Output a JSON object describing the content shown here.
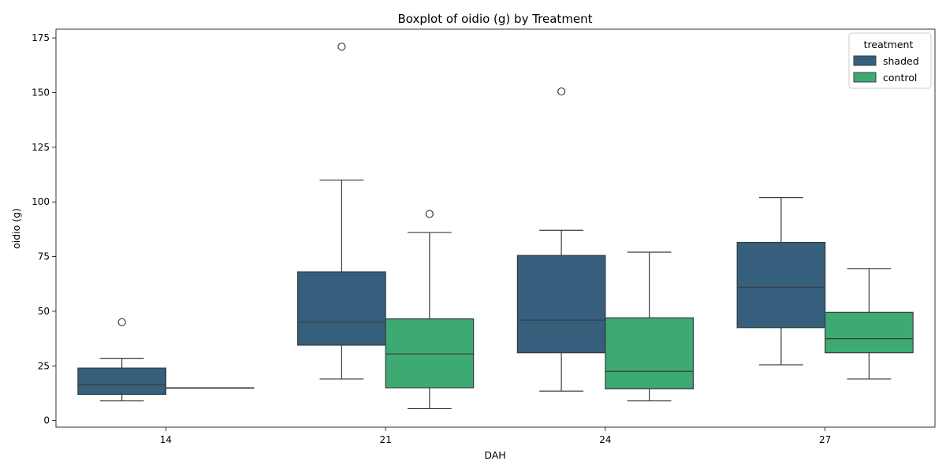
{
  "chart_data": {
    "type": "boxplot",
    "title": "Boxplot of oidio (g) by Treatment",
    "xlabel": "DAH",
    "ylabel": "oidio (g)",
    "categories": [
      "14",
      "21",
      "24",
      "27"
    ],
    "ylim": [
      -3,
      179
    ],
    "yticks": [
      0,
      25,
      50,
      75,
      100,
      125,
      150,
      175
    ],
    "grid": false,
    "legend": {
      "title": "treatment",
      "placement": "top-right"
    },
    "series": [
      {
        "name": "shaded",
        "color": "#355f7d",
        "boxes": [
          {
            "category": "14",
            "whisker_low": 9,
            "q1": 12,
            "median": 16.5,
            "q3": 24,
            "whisker_high": 28.5,
            "outliers": [
              45
            ]
          },
          {
            "category": "21",
            "whisker_low": 19,
            "q1": 34.5,
            "median": 45,
            "q3": 68,
            "whisker_high": 110,
            "outliers": [
              171
            ]
          },
          {
            "category": "24",
            "whisker_low": 13.5,
            "q1": 31,
            "median": 46,
            "q3": 75.5,
            "whisker_high": 87,
            "outliers": [
              150.5
            ]
          },
          {
            "category": "27",
            "whisker_low": 25.5,
            "q1": 42.5,
            "median": 61,
            "q3": 81.5,
            "whisker_high": 102,
            "outliers": []
          }
        ]
      },
      {
        "name": "control",
        "color": "#3daa73",
        "boxes": [
          {
            "category": "14",
            "whisker_low": 15,
            "q1": 15,
            "median": 15,
            "q3": 15,
            "whisker_high": 15,
            "outliers": []
          },
          {
            "category": "21",
            "whisker_low": 5.5,
            "q1": 15,
            "median": 30.5,
            "q3": 46.5,
            "whisker_high": 86,
            "outliers": [
              94.5
            ]
          },
          {
            "category": "24",
            "whisker_low": 9,
            "q1": 14.5,
            "median": 22.5,
            "q3": 47,
            "whisker_high": 77,
            "outliers": []
          },
          {
            "category": "27",
            "whisker_low": 19,
            "q1": 31,
            "median": 37.5,
            "q3": 49.5,
            "whisker_high": 69.5,
            "outliers": []
          }
        ]
      }
    ]
  }
}
